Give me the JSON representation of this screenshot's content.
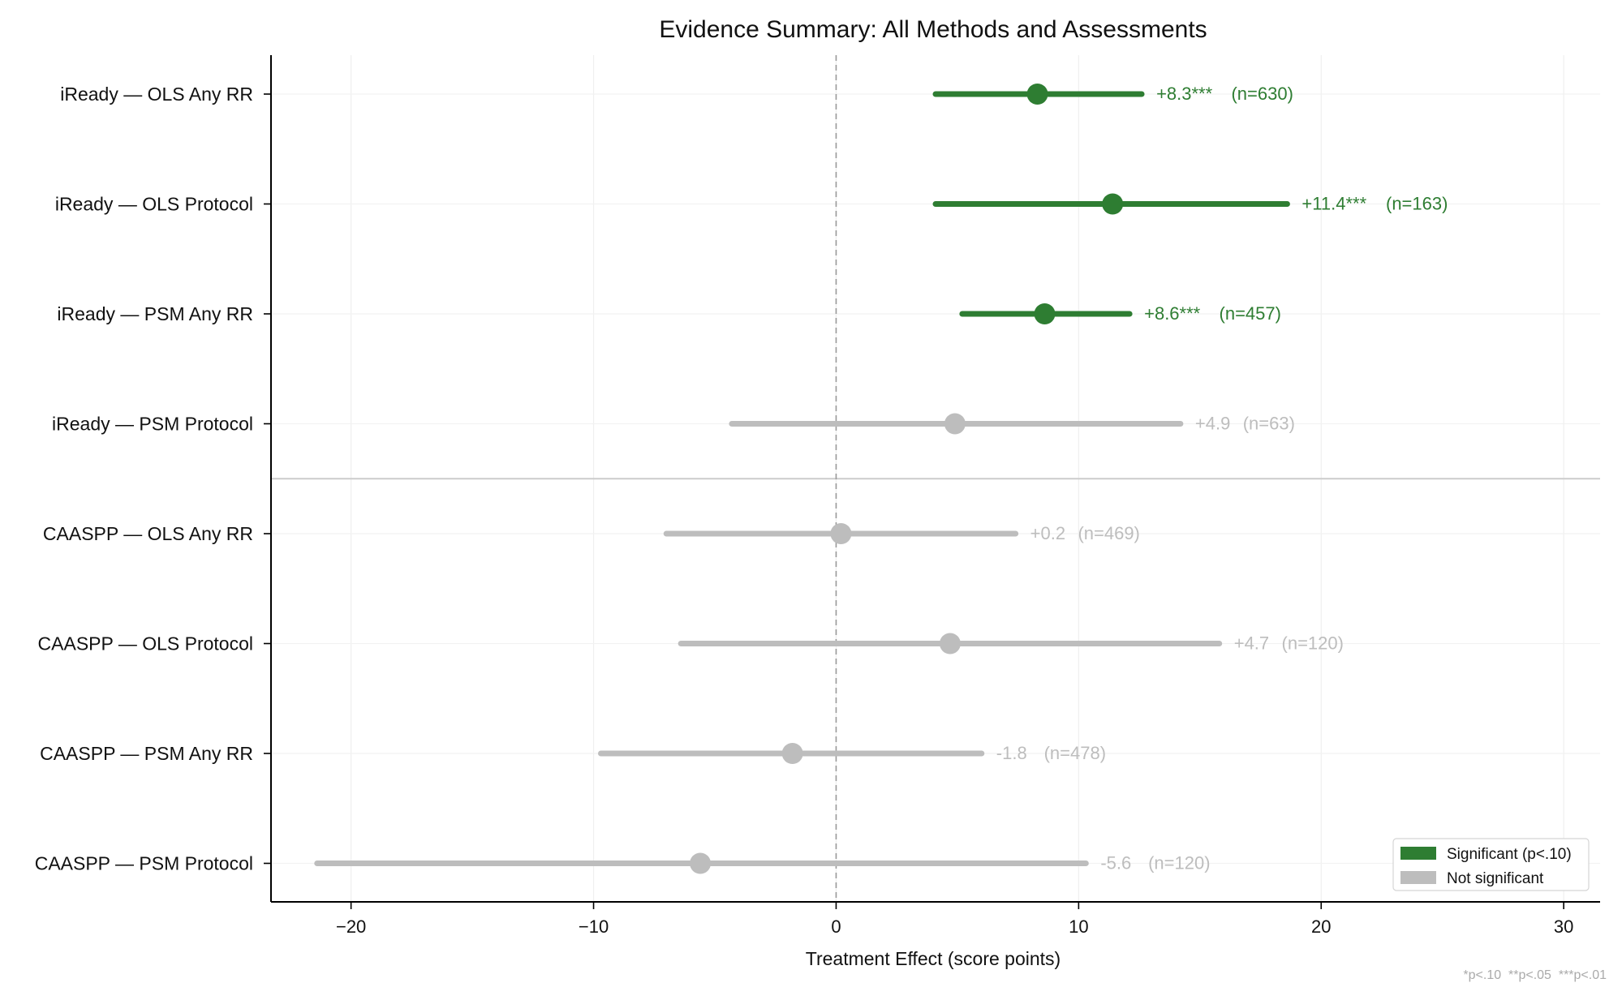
{
  "chart_data": {
    "type": "forest",
    "title": "Evidence Summary: All Methods and Assessments",
    "xlabel": "Treatment Effect (score points)",
    "xlim": [
      -23.3,
      31.5
    ],
    "xticks": [
      -20,
      -10,
      0,
      10,
      20,
      30
    ],
    "xtick_labels": [
      "−20",
      "−10",
      "0",
      "10",
      "20",
      "30"
    ],
    "grid": true,
    "reference_line": 0,
    "group_separator_after_row": 4,
    "rows": [
      {
        "label": "iReady — OLS Any RR",
        "estimate": 8.3,
        "ci": [
          4.1,
          12.6
        ],
        "significant": true,
        "annotation": "+8.3***",
        "n_label": "(n=630)"
      },
      {
        "label": "iReady — OLS Protocol",
        "estimate": 11.4,
        "ci": [
          4.1,
          18.6
        ],
        "significant": true,
        "annotation": "+11.4***",
        "n_label": "(n=163)"
      },
      {
        "label": "iReady — PSM Any RR",
        "estimate": 8.6,
        "ci": [
          5.2,
          12.1
        ],
        "significant": true,
        "annotation": "+8.6***",
        "n_label": "(n=457)"
      },
      {
        "label": "iReady — PSM Protocol",
        "estimate": 4.9,
        "ci": [
          -4.3,
          14.2
        ],
        "significant": false,
        "annotation": "+4.9",
        "n_label": "(n=63)"
      },
      {
        "label": "CAASPP — OLS Any RR",
        "estimate": 0.2,
        "ci": [
          -7.0,
          7.4
        ],
        "significant": false,
        "annotation": "+0.2",
        "n_label": "(n=469)"
      },
      {
        "label": "CAASPP — OLS Protocol",
        "estimate": 4.7,
        "ci": [
          -6.4,
          15.8
        ],
        "significant": false,
        "annotation": "+4.7",
        "n_label": "(n=120)"
      },
      {
        "label": "CAASPP — PSM Any RR",
        "estimate": -1.8,
        "ci": [
          -9.7,
          6.0
        ],
        "significant": false,
        "annotation": "-1.8",
        "n_label": "(n=478)"
      },
      {
        "label": "CAASPP — PSM Protocol",
        "estimate": -5.6,
        "ci": [
          -21.4,
          10.3
        ],
        "significant": false,
        "annotation": "-5.6",
        "n_label": "(n=120)"
      }
    ],
    "legend": {
      "position": "lower-right",
      "entries": [
        {
          "label": "Significant (p<.10)",
          "color": "#2e7d32"
        },
        {
          "label": "Not significant",
          "color": "#bdbdbd"
        }
      ]
    },
    "footnote": "*p<.10  **p<.05  ***p<.01",
    "colors": {
      "significant": "#2e7d32",
      "not_significant": "#bdbdbd"
    }
  }
}
